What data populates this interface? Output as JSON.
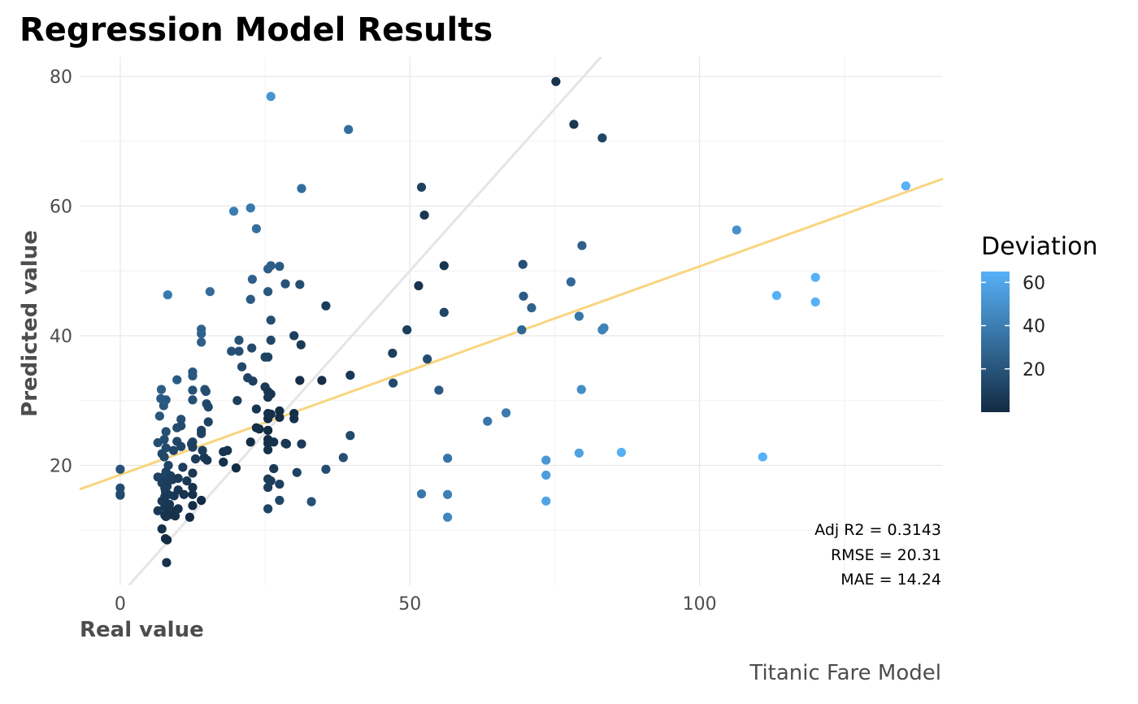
{
  "chart_data": {
    "type": "scatter",
    "title": "Regression Model Results",
    "xlabel": "Real value",
    "ylabel": "Predicted value",
    "caption": "Titanic Fare Model",
    "xlim": [
      -7,
      142
    ],
    "ylim": [
      1.5,
      83
    ],
    "x_ticks": [
      0,
      50,
      100
    ],
    "y_ticks": [
      20,
      40,
      60,
      80
    ],
    "grid": true,
    "legend": {
      "title": "Deviation",
      "position": "right",
      "ticks": [
        20,
        40,
        60
      ],
      "range": [
        0,
        65
      ],
      "color_low": "#132B43",
      "color_high": "#56B1F7"
    },
    "reference_line": {
      "slope": 1,
      "intercept": 0,
      "color": "#e5e5e5"
    },
    "fit_line": {
      "x": [
        -7,
        142
      ],
      "y": [
        16.3,
        64.2
      ],
      "color": "#f9d57f"
    },
    "stats": [
      "Adj R2 =  0.3143",
      "RMSE = 20.31",
      "MAE = 14.24"
    ],
    "points": [
      [
        0,
        19.4
      ],
      [
        0,
        16.5
      ],
      [
        0,
        15.6
      ],
      [
        0,
        15.4
      ],
      [
        6.5,
        23.5
      ],
      [
        6.5,
        18.2
      ],
      [
        6.5,
        13.0
      ],
      [
        6.8,
        27.6
      ],
      [
        7.0,
        30.3
      ],
      [
        7.1,
        31.7
      ],
      [
        7.2,
        21.8
      ],
      [
        7.2,
        17.3
      ],
      [
        7.2,
        14.5
      ],
      [
        7.2,
        10.2
      ],
      [
        7.5,
        29.2
      ],
      [
        7.6,
        24.0
      ],
      [
        7.6,
        21.3
      ],
      [
        7.7,
        18.4
      ],
      [
        7.7,
        16.5
      ],
      [
        7.7,
        15.2
      ],
      [
        7.7,
        13.6
      ],
      [
        7.7,
        12.3
      ],
      [
        7.8,
        8.7
      ],
      [
        7.8,
        16.0
      ],
      [
        7.9,
        30.1
      ],
      [
        7.9,
        25.2
      ],
      [
        7.9,
        22.7
      ],
      [
        7.9,
        19.0
      ],
      [
        7.9,
        17.4
      ],
      [
        7.9,
        14.2
      ],
      [
        7.9,
        12.1
      ],
      [
        8.0,
        5.0
      ],
      [
        8.1,
        8.5
      ],
      [
        8.1,
        16.8
      ],
      [
        8.2,
        46.3
      ],
      [
        8.3,
        20.0
      ],
      [
        8.3,
        15.5
      ],
      [
        8.5,
        14.0
      ],
      [
        8.7,
        18.4
      ],
      [
        8.7,
        13.1
      ],
      [
        8.7,
        12.4
      ],
      [
        9.0,
        17.8
      ],
      [
        9.2,
        22.3
      ],
      [
        9.3,
        15.3
      ],
      [
        9.5,
        12.2
      ],
      [
        9.8,
        33.2
      ],
      [
        9.8,
        25.8
      ],
      [
        9.8,
        23.7
      ],
      [
        10.0,
        18.0
      ],
      [
        10.0,
        16.2
      ],
      [
        10.0,
        13.3
      ],
      [
        10.5,
        27.1
      ],
      [
        10.5,
        26.1
      ],
      [
        10.5,
        22.9
      ],
      [
        10.8,
        19.7
      ],
      [
        11.0,
        15.5
      ],
      [
        11.5,
        17.6
      ],
      [
        12.0,
        12.0
      ],
      [
        12.3,
        23.3
      ],
      [
        12.5,
        34.4
      ],
      [
        12.5,
        33.8
      ],
      [
        12.5,
        31.6
      ],
      [
        12.5,
        30.1
      ],
      [
        12.5,
        23.6
      ],
      [
        12.5,
        22.8
      ],
      [
        12.5,
        18.8
      ],
      [
        12.5,
        16.6
      ],
      [
        12.5,
        15.5
      ],
      [
        12.5,
        13.8
      ],
      [
        13.0,
        21.0
      ],
      [
        14.0,
        41.0
      ],
      [
        14.0,
        40.3
      ],
      [
        14.0,
        39.0
      ],
      [
        14.0,
        25.4
      ],
      [
        14.0,
        24.9
      ],
      [
        14.0,
        14.6
      ],
      [
        14.2,
        22.3
      ],
      [
        14.5,
        21.2
      ],
      [
        14.6,
        31.7
      ],
      [
        14.8,
        31.4
      ],
      [
        14.9,
        29.5
      ],
      [
        15.0,
        20.8
      ],
      [
        15.2,
        29.0
      ],
      [
        15.2,
        26.7
      ],
      [
        15.5,
        46.8
      ],
      [
        17.8,
        22.1
      ],
      [
        17.8,
        20.5
      ],
      [
        18.5,
        22.3
      ],
      [
        19.2,
        37.6
      ],
      [
        19.6,
        59.2
      ],
      [
        20.0,
        19.6
      ],
      [
        20.2,
        30.0
      ],
      [
        20.5,
        39.3
      ],
      [
        20.5,
        37.6
      ],
      [
        21.0,
        35.2
      ],
      [
        22.0,
        33.5
      ],
      [
        22.5,
        59.7
      ],
      [
        22.5,
        45.6
      ],
      [
        22.5,
        23.6
      ],
      [
        22.7,
        38.1
      ],
      [
        22.8,
        48.7
      ],
      [
        22.9,
        33.0
      ],
      [
        23.5,
        56.5
      ],
      [
        23.5,
        28.7
      ],
      [
        23.5,
        25.8
      ],
      [
        24.0,
        25.6
      ],
      [
        25.0,
        36.7
      ],
      [
        25.0,
        32.1
      ],
      [
        25.5,
        50.3
      ],
      [
        25.5,
        46.8
      ],
      [
        25.5,
        36.7
      ],
      [
        25.5,
        31.4
      ],
      [
        25.5,
        30.5
      ],
      [
        25.5,
        28.0
      ],
      [
        25.5,
        27.2
      ],
      [
        25.5,
        25.4
      ],
      [
        25.5,
        24.0
      ],
      [
        25.5,
        23.4
      ],
      [
        25.5,
        22.4
      ],
      [
        25.5,
        17.9
      ],
      [
        25.5,
        16.6
      ],
      [
        25.5,
        13.3
      ],
      [
        26.0,
        76.9
      ],
      [
        26.0,
        50.8
      ],
      [
        26.0,
        42.4
      ],
      [
        26.0,
        39.3
      ],
      [
        26.0,
        31.0
      ],
      [
        26.0,
        27.9
      ],
      [
        26.0,
        17.6
      ],
      [
        26.5,
        23.6
      ],
      [
        26.5,
        19.5
      ],
      [
        27.5,
        50.7
      ],
      [
        27.5,
        28.4
      ],
      [
        27.5,
        27.4
      ],
      [
        27.5,
        17.1
      ],
      [
        27.5,
        14.6
      ],
      [
        28.5,
        48.0
      ],
      [
        28.5,
        23.4
      ],
      [
        28.7,
        23.3
      ],
      [
        30.0,
        40.0
      ],
      [
        30.0,
        28.0
      ],
      [
        30.0,
        27.2
      ],
      [
        30.5,
        18.9
      ],
      [
        31.0,
        47.9
      ],
      [
        31.0,
        33.1
      ],
      [
        31.2,
        38.6
      ],
      [
        31.3,
        62.7
      ],
      [
        31.3,
        23.3
      ],
      [
        33.0,
        14.4
      ],
      [
        34.8,
        33.1
      ],
      [
        35.5,
        44.6
      ],
      [
        35.5,
        19.4
      ],
      [
        38.5,
        21.2
      ],
      [
        39.4,
        71.8
      ],
      [
        39.7,
        33.9
      ],
      [
        39.7,
        24.6
      ],
      [
        47.0,
        37.3
      ],
      [
        47.1,
        32.7
      ],
      [
        49.5,
        40.9
      ],
      [
        51.5,
        47.7
      ],
      [
        52.0,
        62.9
      ],
      [
        52.0,
        15.6
      ],
      [
        52.5,
        58.6
      ],
      [
        53.0,
        36.4
      ],
      [
        55.0,
        31.6
      ],
      [
        55.9,
        50.8
      ],
      [
        55.9,
        43.6
      ],
      [
        56.5,
        21.1
      ],
      [
        56.5,
        15.5
      ],
      [
        56.5,
        12.0
      ],
      [
        63.4,
        26.8
      ],
      [
        66.6,
        28.1
      ],
      [
        69.3,
        40.9
      ],
      [
        69.5,
        51.0
      ],
      [
        69.6,
        46.1
      ],
      [
        71.0,
        44.3
      ],
      [
        73.5,
        20.8
      ],
      [
        73.5,
        18.5
      ],
      [
        73.5,
        14.5
      ],
      [
        75.2,
        79.2
      ],
      [
        77.8,
        48.3
      ],
      [
        78.3,
        72.6
      ],
      [
        79.2,
        43.0
      ],
      [
        79.2,
        21.9
      ],
      [
        79.6,
        31.7
      ],
      [
        79.7,
        53.9
      ],
      [
        83.2,
        70.5
      ],
      [
        83.2,
        40.9
      ],
      [
        83.5,
        41.2
      ],
      [
        86.5,
        22.0
      ],
      [
        106.4,
        56.3
      ],
      [
        110.9,
        21.3
      ],
      [
        113.3,
        46.2
      ],
      [
        120.0,
        49.0
      ],
      [
        120.0,
        45.2
      ],
      [
        135.6,
        63.1
      ]
    ]
  }
}
